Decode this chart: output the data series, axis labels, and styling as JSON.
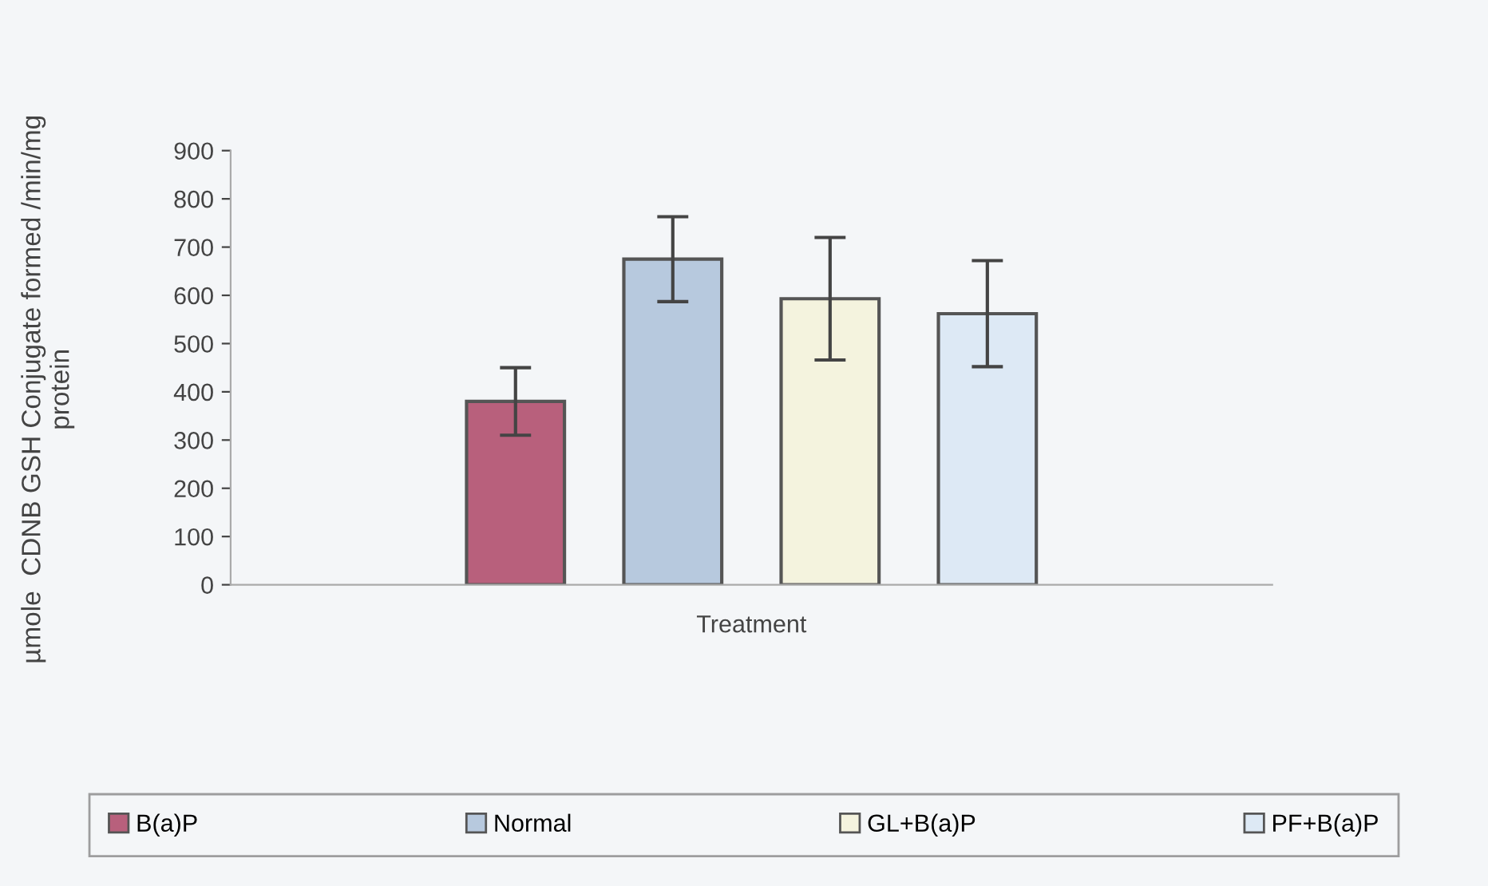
{
  "chart_data": {
    "type": "bar",
    "xlabel": "Treatment",
    "ylabel": "µmole  CDNB GSH Conjugate formed /min/mg\nprotein",
    "categories": [
      null
    ],
    "series": [
      {
        "name": "B(a)P",
        "color": "#b8607c",
        "values": [
          380
        ],
        "errors": [
          70
        ]
      },
      {
        "name": "Normal",
        "color": "#b7c9de",
        "values": [
          675
        ],
        "errors": [
          88
        ]
      },
      {
        "name": "GL+B(a)P",
        "color": "#f4f3de",
        "values": [
          593
        ],
        "errors": [
          127
        ]
      },
      {
        "name": "PF+B(a)P",
        "color": "#dde9f5",
        "values": [
          562
        ],
        "errors": [
          110
        ]
      }
    ],
    "ylim": [
      0,
      900
    ],
    "yticks": [
      0,
      100,
      200,
      300,
      400,
      500,
      600,
      700,
      800,
      900
    ],
    "grid": false,
    "legend": "bottom"
  }
}
